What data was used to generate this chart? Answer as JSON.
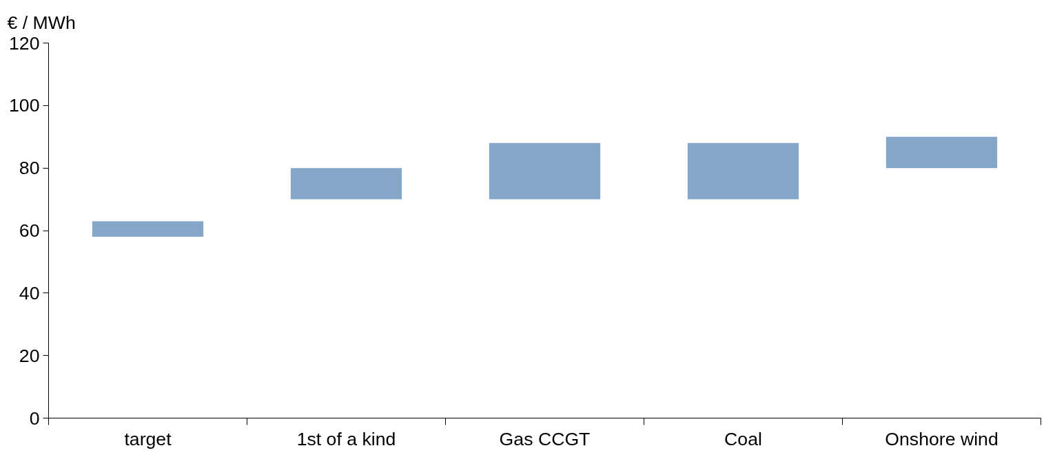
{
  "chart_data": {
    "type": "bar",
    "ylabel": "€ / MWh",
    "categories": [
      "target",
      "1st of a kind",
      "Gas CCGT",
      "Coal",
      "Onshore wind"
    ],
    "base": [
      58,
      70,
      70,
      70,
      80
    ],
    "values": [
      5,
      10,
      18,
      18,
      10
    ],
    "color": "#84a6c7",
    "ylim": [
      0,
      120
    ],
    "yticks": [
      0,
      20,
      40,
      60,
      80,
      100,
      120
    ],
    "grid": false
  }
}
